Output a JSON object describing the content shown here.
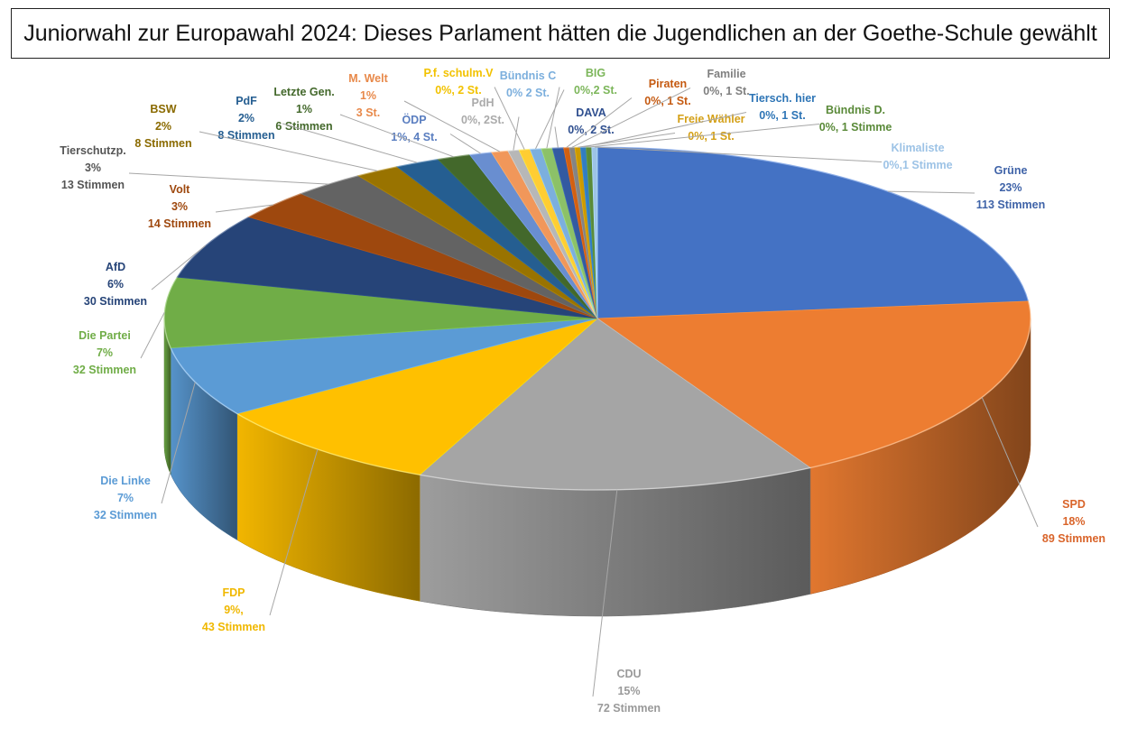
{
  "chart_data": {
    "type": "pie",
    "title": "Juniorwahl zur Europawahl 2024: Dieses Parlament hätten die Jugendlichen an der Goethe-Schule gewählt",
    "slices": [
      {
        "name": "Grüne",
        "value": 113,
        "lines": [
          "Grüne",
          "23%",
          "113 Stimmen"
        ],
        "color": "#4472C4",
        "labelColor": "#3F63A8"
      },
      {
        "name": "SPD",
        "value": 89,
        "lines": [
          "SPD",
          "18%",
          "89 Stimmen"
        ],
        "color": "#ED7D31",
        "labelColor": "#D9642A"
      },
      {
        "name": "CDU",
        "value": 72,
        "lines": [
          "CDU",
          "15%",
          "72 Stimmen"
        ],
        "color": "#A5A5A5",
        "labelColor": "#9A9A9A"
      },
      {
        "name": "FDP",
        "value": 43,
        "lines": [
          "FDP",
          "9%,",
          "43 Stimmen"
        ],
        "color": "#FFC000",
        "labelColor": "#F0B800"
      },
      {
        "name": "Die Linke",
        "value": 32,
        "lines": [
          "Die Linke",
          "7%",
          "32 Stimmen"
        ],
        "color": "#5B9BD5",
        "labelColor": "#5B9BD5"
      },
      {
        "name": "Die Partei",
        "value": 32,
        "lines": [
          "Die Partei",
          "7%",
          "32 Stimmen"
        ],
        "color": "#70AD47",
        "labelColor": "#70AD47"
      },
      {
        "name": "AfD",
        "value": 30,
        "lines": [
          "AfD",
          "6%",
          "30 Stimmen"
        ],
        "color": "#264478",
        "labelColor": "#264478"
      },
      {
        "name": "Volt",
        "value": 14,
        "lines": [
          "Volt",
          "3%",
          "14 Stimmen"
        ],
        "color": "#9E480E",
        "labelColor": "#9E480E"
      },
      {
        "name": "Tierschutzp.",
        "value": 13,
        "lines": [
          "Tierschutzp.",
          "3%",
          "13 Stimmen"
        ],
        "color": "#636363",
        "labelColor": "#555555"
      },
      {
        "name": "BSW",
        "value": 8,
        "lines": [
          "BSW",
          "2%",
          "8 Stimmen"
        ],
        "color": "#997300",
        "labelColor": "#8A6A00"
      },
      {
        "name": "PdF",
        "value": 8,
        "lines": [
          "PdF",
          "2%",
          "8 Stimmen"
        ],
        "color": "#255E91",
        "labelColor": "#255E91"
      },
      {
        "name": "Letzte Gen.",
        "value": 6,
        "lines": [
          "Letzte Gen.",
          "1%",
          "6 Stimmen"
        ],
        "color": "#43682B",
        "labelColor": "#43682B"
      },
      {
        "name": "ÖDP",
        "value": 4,
        "lines": [
          "ÖDP",
          "1%, 4 St."
        ],
        "color": "#698ED0",
        "labelColor": "#5A7EC0"
      },
      {
        "name": "M. Welt",
        "value": 3,
        "lines": [
          "M. Welt",
          "1%",
          "3 St."
        ],
        "color": "#F1975A",
        "labelColor": "#E8894A"
      },
      {
        "name": "PdH",
        "value": 2,
        "lines": [
          "PdH",
          "0%, 2St."
        ],
        "color": "#B7B7B7",
        "labelColor": "#AAAAAA"
      },
      {
        "name": "P.f. schulm.V",
        "value": 2,
        "lines": [
          "P.f. schulm.V",
          "0%, 2 St."
        ],
        "color": "#FFCD33",
        "labelColor": "#F2C200"
      },
      {
        "name": "Bündnis C",
        "value": 2,
        "lines": [
          "Bündnis C",
          "0% 2 St."
        ],
        "color": "#7CAFDD",
        "labelColor": "#7CAFDD"
      },
      {
        "name": "BIG",
        "value": 2,
        "lines": [
          "BIG",
          "0%,2 St."
        ],
        "color": "#8CC168",
        "labelColor": "#7CB65A"
      },
      {
        "name": "DAVA",
        "value": 2,
        "lines": [
          "DAVA",
          "0%, 2 St."
        ],
        "color": "#335AA1",
        "labelColor": "#2F4F8F"
      },
      {
        "name": "Piraten",
        "value": 1,
        "lines": [
          "Piraten",
          "0%, 1 St."
        ],
        "color": "#D26012",
        "labelColor": "#C55A11"
      },
      {
        "name": "Familie",
        "value": 1,
        "lines": [
          "Familie",
          "0%, 1 St."
        ],
        "color": "#848484",
        "labelColor": "#7F7F7F"
      },
      {
        "name": "Freie Wähler",
        "value": 1,
        "lines": [
          "Freie Wähler",
          "0%, 1 St."
        ],
        "color": "#CC9A00",
        "labelColor": "#D4A017"
      },
      {
        "name": "Tiersch. hier",
        "value": 1,
        "lines": [
          "Tiersch. hier",
          "0%, 1 St."
        ],
        "color": "#327DC2",
        "labelColor": "#2E75B6"
      },
      {
        "name": "Bündnis D.",
        "value": 1,
        "lines": [
          "Bündnis D.",
          "0%, 1 Stimme"
        ],
        "color": "#5A8A39",
        "labelColor": "#5A8A39"
      },
      {
        "name": "Klimaliste",
        "value": 1,
        "lines": [
          "Klimaliste",
          "0%,1 Stimme"
        ],
        "color": "#9DC3E6",
        "labelColor": "#9DC3E6"
      }
    ]
  }
}
